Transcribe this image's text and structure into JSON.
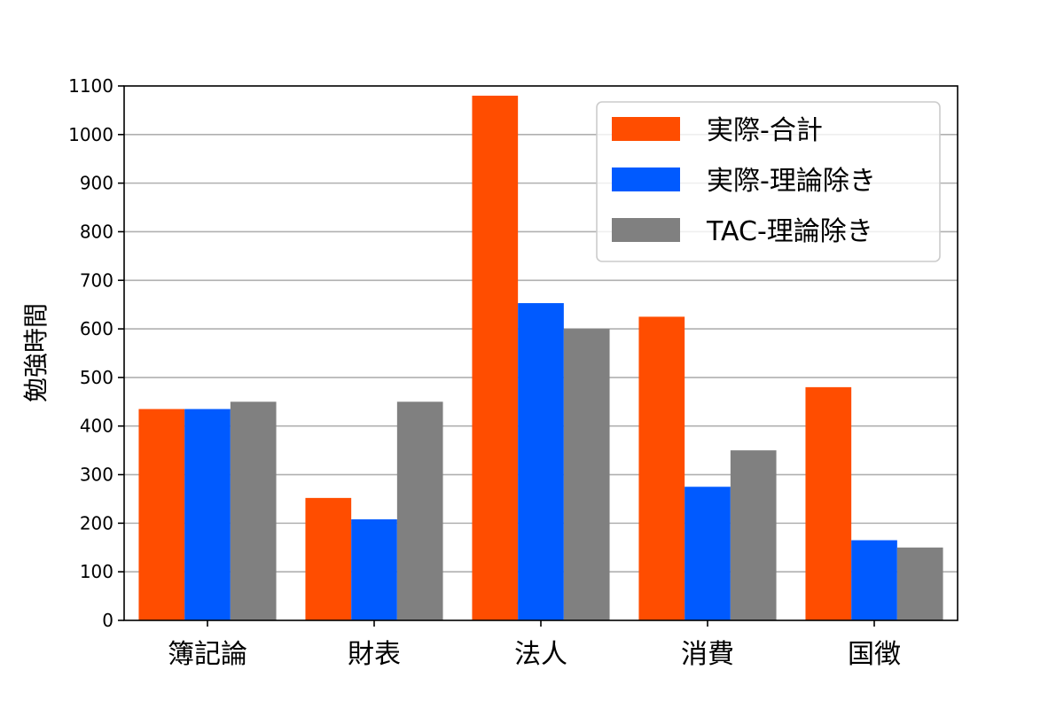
{
  "chart_data": {
    "type": "bar",
    "ylabel": "勉強時間",
    "xlabel": "",
    "title": "",
    "categories": [
      "簿記論",
      "財表",
      "法人",
      "消費",
      "国徴"
    ],
    "ylim": [
      0,
      1100
    ],
    "yticks": [
      0,
      100,
      200,
      300,
      400,
      500,
      600,
      700,
      800,
      900,
      1000,
      1100
    ],
    "grid": "horizontal",
    "legend_position": "top-right",
    "series": [
      {
        "name": "実際-合計",
        "color": "#ff4d00",
        "values": [
          435,
          252,
          1080,
          625,
          480
        ]
      },
      {
        "name": "実際-理論除き",
        "color": "#005aff",
        "values": [
          435,
          208,
          653,
          275,
          165
        ]
      },
      {
        "name": "TAC-理論除き",
        "color": "#808080",
        "values": [
          450,
          450,
          600,
          350,
          150
        ]
      }
    ]
  }
}
